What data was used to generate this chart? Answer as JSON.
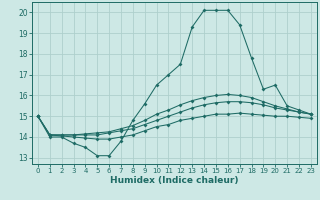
{
  "title": "",
  "xlabel": "Humidex (Indice chaleur)",
  "xlim": [
    -0.5,
    23.5
  ],
  "ylim": [
    12.7,
    20.5
  ],
  "yticks": [
    13,
    14,
    15,
    16,
    17,
    18,
    19,
    20
  ],
  "xticks": [
    0,
    1,
    2,
    3,
    4,
    5,
    6,
    7,
    8,
    9,
    10,
    11,
    12,
    13,
    14,
    15,
    16,
    17,
    18,
    19,
    20,
    21,
    22,
    23
  ],
  "bg_color": "#cde8e5",
  "grid_color": "#aed0cc",
  "line_color": "#1e6b65",
  "lines": [
    {
      "x": [
        0,
        1,
        2,
        3,
        4,
        5,
        6,
        7,
        8,
        9,
        10,
        11,
        12,
        13,
        14,
        15,
        16,
        17,
        18,
        19,
        20,
        21,
        22,
        23
      ],
      "y": [
        15.0,
        14.0,
        14.0,
        13.7,
        13.5,
        13.1,
        13.1,
        13.8,
        14.8,
        15.6,
        16.5,
        17.0,
        17.5,
        19.3,
        20.1,
        20.1,
        20.1,
        19.4,
        17.8,
        16.3,
        16.5,
        15.5,
        15.3,
        15.1
      ]
    },
    {
      "x": [
        0,
        1,
        2,
        3,
        4,
        5,
        6,
        7,
        8,
        9,
        10,
        11,
        12,
        13,
        14,
        15,
        16,
        17,
        18,
        19,
        20,
        21,
        22,
        23
      ],
      "y": [
        15.0,
        14.1,
        14.05,
        14.0,
        13.95,
        13.9,
        13.9,
        14.0,
        14.1,
        14.3,
        14.5,
        14.6,
        14.8,
        14.9,
        15.0,
        15.1,
        15.1,
        15.15,
        15.1,
        15.05,
        15.0,
        15.0,
        14.95,
        14.9
      ]
    },
    {
      "x": [
        0,
        1,
        2,
        3,
        4,
        5,
        6,
        7,
        8,
        9,
        10,
        11,
        12,
        13,
        14,
        15,
        16,
        17,
        18,
        19,
        20,
        21,
        22,
        23
      ],
      "y": [
        15.0,
        14.1,
        14.1,
        14.1,
        14.1,
        14.1,
        14.2,
        14.3,
        14.4,
        14.6,
        14.8,
        15.0,
        15.2,
        15.4,
        15.55,
        15.65,
        15.7,
        15.7,
        15.65,
        15.55,
        15.4,
        15.3,
        15.2,
        15.1
      ]
    },
    {
      "x": [
        0,
        1,
        2,
        3,
        4,
        5,
        6,
        7,
        8,
        9,
        10,
        11,
        12,
        13,
        14,
        15,
        16,
        17,
        18,
        19,
        20,
        21,
        22,
        23
      ],
      "y": [
        15.0,
        14.1,
        14.1,
        14.1,
        14.15,
        14.2,
        14.25,
        14.4,
        14.55,
        14.8,
        15.1,
        15.3,
        15.55,
        15.75,
        15.9,
        16.0,
        16.05,
        16.0,
        15.9,
        15.7,
        15.5,
        15.35,
        15.2,
        15.1
      ]
    }
  ]
}
